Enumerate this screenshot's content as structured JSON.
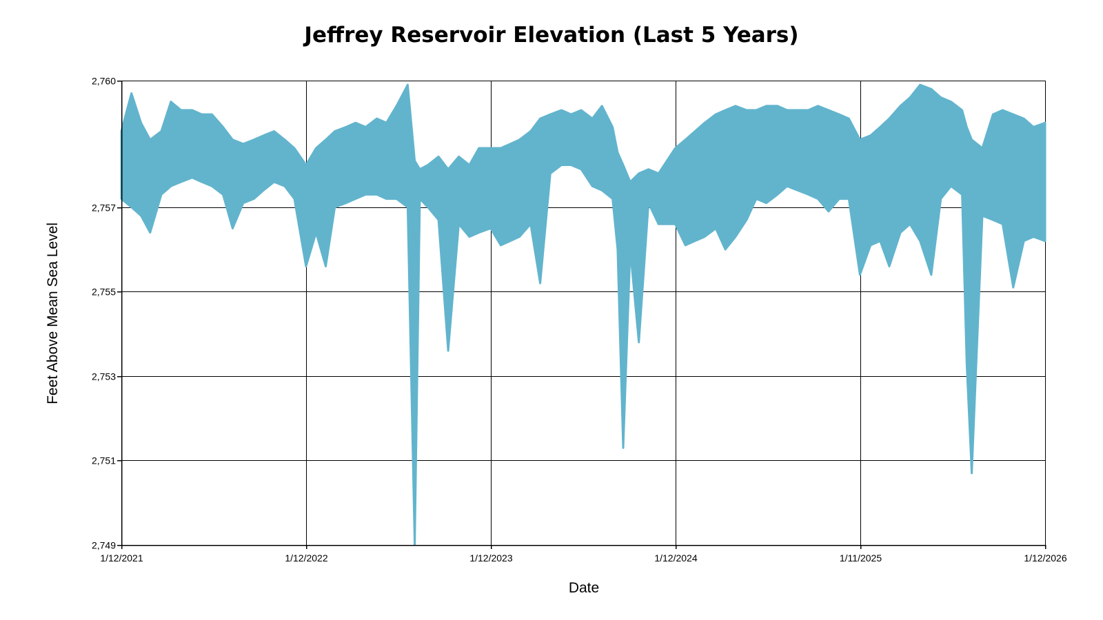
{
  "chart_data": {
    "type": "area",
    "title": "Jeffrey Reservoir Elevation (Last 5 Years)",
    "xlabel": "Date",
    "ylabel": "Feet Above Mean Sea Level",
    "x_ticks": [
      "1/12/2021",
      "1/12/2022",
      "1/12/2023",
      "1/12/2024",
      "1/11/2025",
      "1/12/2026"
    ],
    "y_ticks": [
      "2,749",
      "2,751",
      "2,753",
      "2,755",
      "2,757",
      "2,760"
    ],
    "xlim": [
      "2021-01-12",
      "2026-01-12"
    ],
    "ylim": [
      2749,
      2760
    ],
    "grid": true,
    "legend": "none",
    "series": [
      {
        "color": "#62b4cd",
        "x": [
          "2021-01-12",
          "2021-02-01",
          "2021-02-20",
          "2021-03-10",
          "2021-04-01",
          "2021-04-20",
          "2021-05-10",
          "2021-06-01",
          "2021-06-20",
          "2021-07-10",
          "2021-08-01",
          "2021-08-20",
          "2021-09-10",
          "2021-10-01",
          "2021-10-20",
          "2021-11-10",
          "2021-12-01",
          "2021-12-20",
          "2022-01-12",
          "2022-02-01",
          "2022-02-20",
          "2022-03-10",
          "2022-04-01",
          "2022-04-20",
          "2022-05-10",
          "2022-06-01",
          "2022-06-20",
          "2022-07-10",
          "2022-08-01",
          "2022-08-15",
          "2022-08-25",
          "2022-09-10",
          "2022-10-01",
          "2022-10-20",
          "2022-11-10",
          "2022-12-01",
          "2022-12-20",
          "2023-01-12",
          "2023-02-01",
          "2023-02-20",
          "2023-03-10",
          "2023-04-01",
          "2023-04-20",
          "2023-05-10",
          "2023-06-01",
          "2023-06-20",
          "2023-07-10",
          "2023-08-01",
          "2023-08-20",
          "2023-09-10",
          "2023-09-20",
          "2023-10-01",
          "2023-10-15",
          "2023-11-01",
          "2023-11-20",
          "2023-12-10",
          "2024-01-12",
          "2024-02-01",
          "2024-02-20",
          "2024-03-10",
          "2024-04-01",
          "2024-04-20",
          "2024-05-10",
          "2024-06-01",
          "2024-06-20",
          "2024-07-10",
          "2024-08-01",
          "2024-08-20",
          "2024-09-10",
          "2024-10-01",
          "2024-10-20",
          "2024-11-10",
          "2024-12-01",
          "2024-12-20",
          "2025-01-11",
          "2025-02-01",
          "2025-02-20",
          "2025-03-10",
          "2025-04-01",
          "2025-04-20",
          "2025-05-10",
          "2025-06-01",
          "2025-06-20",
          "2025-07-10",
          "2025-08-01",
          "2025-08-10",
          "2025-08-20",
          "2025-09-10",
          "2025-10-01",
          "2025-10-20",
          "2025-11-10",
          "2025-12-01",
          "2025-12-20",
          "2026-01-12"
        ],
        "y_max": [
          2758.8,
          2759.7,
          2759.0,
          2758.6,
          2758.8,
          2759.5,
          2759.3,
          2759.3,
          2759.2,
          2759.2,
          2758.9,
          2758.6,
          2758.5,
          2758.6,
          2758.7,
          2758.8,
          2758.6,
          2758.4,
          2758.0,
          2758.4,
          2758.6,
          2758.8,
          2758.9,
          2759.0,
          2758.9,
          2759.1,
          2759.0,
          2759.4,
          2759.9,
          2758.1,
          2757.9,
          2758.0,
          2758.2,
          2757.9,
          2758.2,
          2758.0,
          2758.4,
          2758.4,
          2758.4,
          2758.5,
          2758.6,
          2758.8,
          2759.1,
          2759.2,
          2759.3,
          2759.2,
          2759.3,
          2759.1,
          2759.4,
          2758.9,
          2758.3,
          2758.0,
          2757.6,
          2757.8,
          2757.9,
          2757.8,
          2758.4,
          2758.6,
          2758.8,
          2759.0,
          2759.2,
          2759.3,
          2759.4,
          2759.3,
          2759.3,
          2759.4,
          2759.4,
          2759.3,
          2759.3,
          2759.3,
          2759.4,
          2759.3,
          2759.2,
          2759.1,
          2758.6,
          2758.7,
          2758.9,
          2759.1,
          2759.4,
          2759.6,
          2759.9,
          2759.8,
          2759.6,
          2759.5,
          2759.3,
          2758.9,
          2758.6,
          2758.4,
          2759.2,
          2759.3,
          2759.2,
          2759.1,
          2758.9,
          2759.0
        ],
        "y_min": [
          2757.2,
          2757.0,
          2756.8,
          2756.4,
          2757.3,
          2757.5,
          2757.6,
          2757.7,
          2757.6,
          2757.5,
          2757.3,
          2756.5,
          2757.1,
          2757.2,
          2757.4,
          2757.6,
          2757.5,
          2757.2,
          2755.6,
          2756.4,
          2755.6,
          2757.0,
          2757.1,
          2757.2,
          2757.3,
          2757.3,
          2757.2,
          2757.2,
          2757.0,
          2749.0,
          2757.2,
          2757.0,
          2756.7,
          2753.6,
          2756.6,
          2756.3,
          2756.4,
          2756.5,
          2756.1,
          2756.2,
          2756.3,
          2756.6,
          2755.2,
          2757.8,
          2758.0,
          2758.0,
          2757.9,
          2757.5,
          2757.4,
          2757.2,
          2756.0,
          2751.3,
          2756.0,
          2753.8,
          2757.1,
          2756.6,
          2756.6,
          2756.1,
          2756.2,
          2756.3,
          2756.5,
          2756.0,
          2756.3,
          2756.7,
          2757.2,
          2757.1,
          2757.3,
          2757.5,
          2757.4,
          2757.3,
          2757.2,
          2756.9,
          2757.2,
          2757.2,
          2755.4,
          2756.1,
          2756.2,
          2755.6,
          2756.4,
          2756.6,
          2756.2,
          2755.4,
          2757.2,
          2757.5,
          2757.3,
          2753.3,
          2750.7,
          2756.8,
          2756.7,
          2756.6,
          2755.1,
          2756.2,
          2756.3,
          2756.2
        ]
      }
    ]
  }
}
